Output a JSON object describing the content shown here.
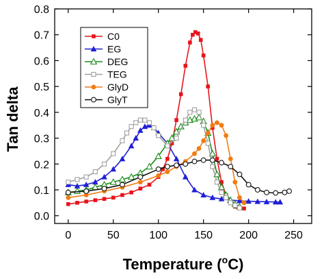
{
  "chart_data": {
    "type": "line",
    "xlabel": "Temperature (",
    "xlabel_sup": "o",
    "xlabel_tail": "C)",
    "ylabel": "Tan delta",
    "xlim": [
      -15,
      270
    ],
    "ylim": [
      -0.03,
      0.8
    ],
    "xticks": [
      0,
      50,
      100,
      150,
      200,
      250
    ],
    "yticks": [
      0.0,
      0.1,
      0.2,
      0.3,
      0.4,
      0.5,
      0.6,
      0.7,
      0.8
    ],
    "ytick_labels": [
      "0.0",
      "0.1",
      "0.2",
      "0.3",
      "0.4",
      "0.5",
      "0.6",
      "0.7",
      "0.8"
    ],
    "legend_position": "top-left",
    "series": [
      {
        "name": "C0",
        "color": "#e8141c",
        "marker": "square-filled",
        "x": [
          0,
          10,
          20,
          30,
          40,
          50,
          60,
          70,
          80,
          90,
          100,
          105,
          110,
          115,
          120,
          125,
          130,
          135,
          138,
          141,
          144,
          147,
          150,
          155,
          160,
          165,
          170,
          175,
          180,
          185,
          190,
          195
        ],
        "y": [
          0.045,
          0.05,
          0.055,
          0.06,
          0.065,
          0.07,
          0.08,
          0.09,
          0.105,
          0.12,
          0.15,
          0.18,
          0.22,
          0.28,
          0.37,
          0.47,
          0.58,
          0.67,
          0.7,
          0.71,
          0.705,
          0.68,
          0.62,
          0.5,
          0.34,
          0.22,
          0.13,
          0.08,
          0.05,
          0.035,
          0.03,
          0.028
        ]
      },
      {
        "name": "EG",
        "color": "#1f1fd6",
        "marker": "triangle-filled",
        "x": [
          0,
          10,
          20,
          30,
          40,
          50,
          60,
          70,
          75,
          80,
          85,
          90,
          95,
          100,
          110,
          120,
          130,
          140,
          150,
          160,
          170,
          180,
          190,
          200,
          210,
          220,
          230,
          235
        ],
        "y": [
          0.12,
          0.115,
          0.12,
          0.13,
          0.15,
          0.18,
          0.22,
          0.27,
          0.3,
          0.33,
          0.345,
          0.35,
          0.34,
          0.32,
          0.28,
          0.22,
          0.15,
          0.1,
          0.08,
          0.07,
          0.065,
          0.06,
          0.058,
          0.056,
          0.055,
          0.054,
          0.053,
          0.053
        ]
      },
      {
        "name": "DEG",
        "color": "#1a8c1a",
        "marker": "triangle-open",
        "x": [
          0,
          10,
          20,
          30,
          40,
          50,
          60,
          70,
          80,
          90,
          100,
          110,
          115,
          120,
          125,
          130,
          135,
          140,
          145,
          150,
          155,
          160,
          165,
          170,
          175,
          180,
          185,
          190
        ],
        "y": [
          0.09,
          0.095,
          0.1,
          0.11,
          0.12,
          0.13,
          0.14,
          0.15,
          0.165,
          0.19,
          0.23,
          0.28,
          0.3,
          0.325,
          0.345,
          0.36,
          0.37,
          0.375,
          0.38,
          0.365,
          0.32,
          0.24,
          0.16,
          0.11,
          0.08,
          0.06,
          0.045,
          0.035
        ]
      },
      {
        "name": "TEG",
        "color": "#a0a0a0",
        "marker": "square-open",
        "x": [
          0,
          10,
          20,
          30,
          40,
          50,
          60,
          65,
          70,
          75,
          80,
          85,
          90,
          95,
          100,
          110,
          120,
          130,
          135,
          140,
          145,
          150,
          155,
          160,
          165,
          170,
          175,
          180,
          185,
          190
        ],
        "y": [
          0.13,
          0.14,
          0.15,
          0.17,
          0.2,
          0.24,
          0.29,
          0.32,
          0.345,
          0.36,
          0.37,
          0.37,
          0.36,
          0.34,
          0.31,
          0.27,
          0.3,
          0.37,
          0.4,
          0.41,
          0.4,
          0.35,
          0.28,
          0.19,
          0.13,
          0.09,
          0.07,
          0.05,
          0.04,
          0.03
        ]
      },
      {
        "name": "GlyD",
        "color": "#f07c14",
        "marker": "circle-filled",
        "x": [
          0,
          20,
          40,
          60,
          80,
          100,
          110,
          120,
          130,
          140,
          145,
          150,
          155,
          160,
          165,
          170,
          175,
          180,
          185,
          190,
          195
        ],
        "y": [
          0.07,
          0.08,
          0.095,
          0.11,
          0.13,
          0.155,
          0.17,
          0.19,
          0.21,
          0.24,
          0.26,
          0.29,
          0.32,
          0.35,
          0.36,
          0.35,
          0.31,
          0.22,
          0.13,
          0.07,
          0.05
        ]
      },
      {
        "name": "GlyT",
        "color": "#111111",
        "marker": "circle-open",
        "x": [
          0,
          20,
          40,
          60,
          80,
          100,
          110,
          120,
          130,
          140,
          150,
          160,
          170,
          180,
          190,
          200,
          210,
          220,
          230,
          240,
          245
        ],
        "y": [
          0.09,
          0.095,
          0.105,
          0.12,
          0.15,
          0.18,
          0.19,
          0.195,
          0.2,
          0.21,
          0.215,
          0.215,
          0.205,
          0.19,
          0.16,
          0.12,
          0.1,
          0.09,
          0.088,
          0.09,
          0.095
        ]
      }
    ]
  }
}
